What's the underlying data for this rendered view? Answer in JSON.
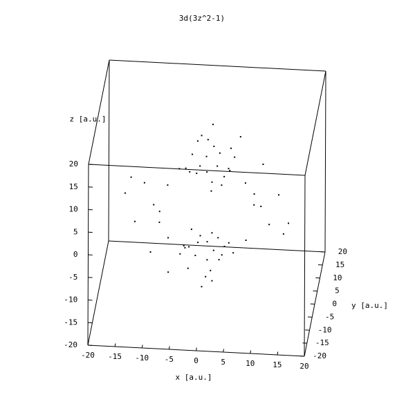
{
  "chart_data": {
    "type": "scatter3d",
    "title": "3d(3z^2-1)",
    "xlabel": "x [a.u.]",
    "ylabel": "y [a.u.]",
    "zlabel": "z [a.u.]",
    "color": "#000000",
    "xlim": [
      -20,
      20
    ],
    "ylim": [
      -20,
      20
    ],
    "zlim": [
      -20,
      20
    ],
    "xticks": [
      -20,
      -15,
      -10,
      -5,
      0,
      5,
      10,
      15,
      20
    ],
    "yticks": [
      -20,
      -15,
      -10,
      -5,
      0,
      5,
      10,
      15,
      20
    ],
    "zticks": [
      -20,
      -15,
      -10,
      -5,
      0,
      5,
      10,
      15,
      20
    ],
    "points": {
      "x": [
        0,
        2,
        -2,
        1,
        -3,
        3,
        -1,
        0,
        4,
        -4,
        1,
        -2,
        2,
        -1,
        3,
        0,
        -3,
        5,
        -5,
        1,
        0,
        -2,
        2,
        1,
        3,
        -3,
        1,
        0,
        -4,
        4,
        -1,
        2,
        -2,
        1,
        -3,
        0,
        3,
        -5,
        5,
        -1,
        10,
        -10,
        0,
        2,
        8,
        -8,
        -8,
        8,
        13,
        -13,
        3,
        -3,
        12,
        -12,
        6,
        -6,
        15,
        -15,
        9,
        -9,
        6,
        -7,
        10,
        -10,
        5,
        -4,
        14,
        -14
      ],
      "y": [
        0,
        -1,
        1,
        3,
        -2,
        2,
        -3,
        2,
        0,
        1,
        -2,
        3,
        4,
        0,
        -3,
        -1,
        3,
        1,
        -1,
        1,
        1,
        -1,
        1,
        -3,
        -2,
        2,
        3,
        -2,
        0,
        1,
        -2,
        3,
        4,
        0,
        -3,
        1,
        3,
        1,
        -1,
        1,
        0,
        2,
        10,
        -11,
        8,
        -8,
        8,
        -8,
        3,
        -3,
        13,
        -13,
        -5,
        5,
        12,
        -12,
        1,
        -1,
        -3,
        3,
        2,
        -1,
        4,
        -4,
        -6,
        6,
        2,
        0
      ],
      "z": [
        8,
        10,
        7,
        12,
        9,
        6,
        11,
        14,
        9,
        8,
        5,
        13,
        10,
        16,
        7,
        12,
        10,
        11,
        9,
        18,
        -8,
        -10,
        -7,
        -12,
        -9,
        -6,
        -11,
        -14,
        -9,
        -8,
        -5,
        -13,
        -10,
        -16,
        -7,
        -12,
        -10,
        -11,
        -9,
        -18,
        1,
        -1,
        0,
        1,
        -1,
        1,
        0,
        -2,
        2,
        -2,
        1,
        -1,
        0,
        2,
        -1,
        0,
        -3,
        3,
        3,
        -3,
        15,
        -14,
        8,
        -8,
        17,
        -17,
        -6,
        6
      ]
    }
  }
}
